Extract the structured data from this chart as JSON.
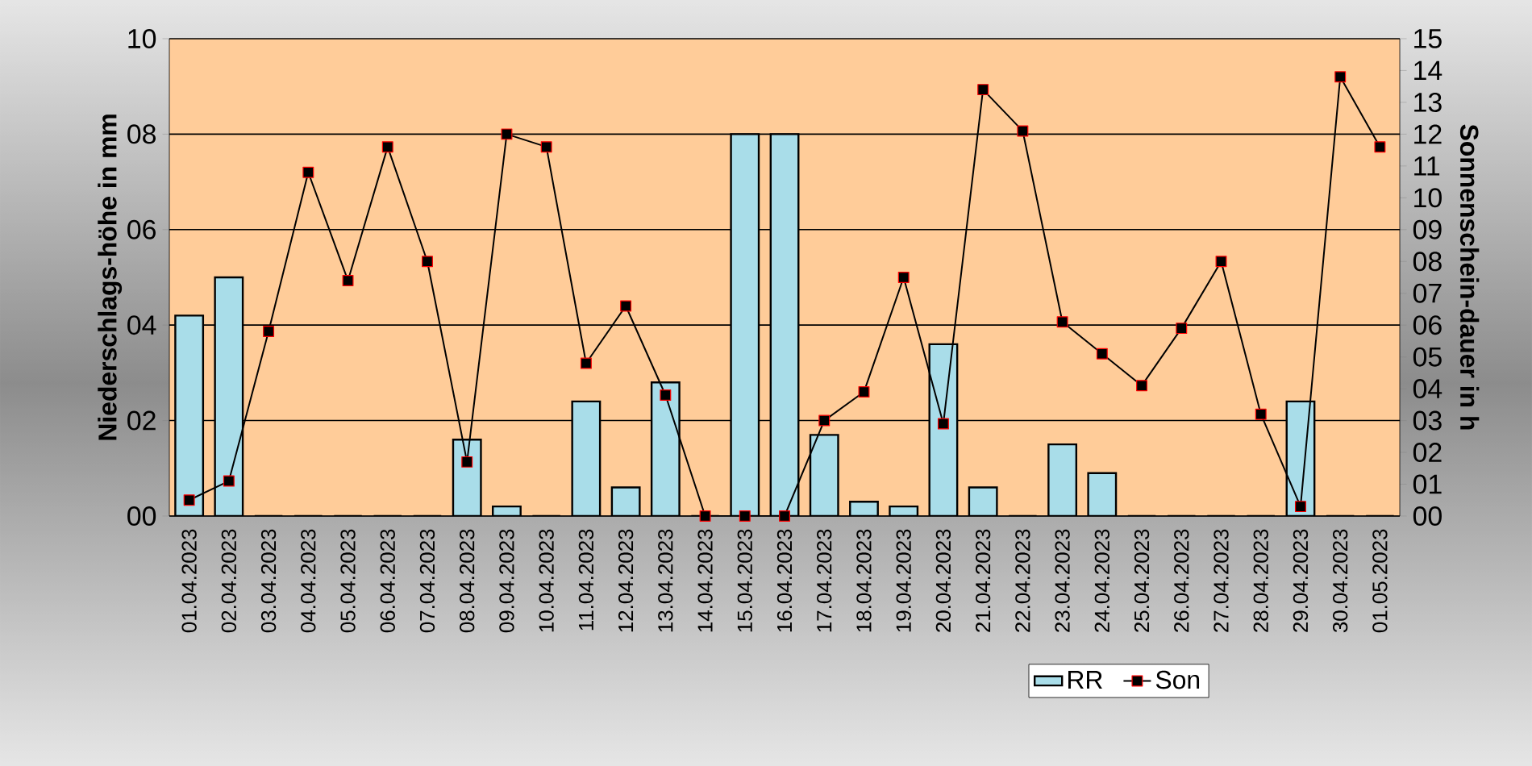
{
  "chart_data": {
    "type": "bar",
    "categories": [
      "01.04.2023",
      "02.04.2023",
      "03.04.2023",
      "04.04.2023",
      "05.04.2023",
      "06.04.2023",
      "07.04.2023",
      "08.04.2023",
      "09.04.2023",
      "10.04.2023",
      "11.04.2023",
      "12.04.2023",
      "13.04.2023",
      "14.04.2023",
      "15.04.2023",
      "16.04.2023",
      "17.04.2023",
      "18.04.2023",
      "19.04.2023",
      "20.04.2023",
      "21.04.2023",
      "22.04.2023",
      "23.04.2023",
      "24.04.2023",
      "25.04.2023",
      "26.04.2023",
      "27.04.2023",
      "28.04.2023",
      "29.04.2023",
      "30.04.2023",
      "01.05.2023"
    ],
    "series": [
      {
        "name": "RR",
        "color": "#a9dde9",
        "values": [
          4.2,
          5.0,
          0,
          0,
          0,
          0,
          0,
          1.6,
          0.2,
          0,
          2.4,
          0.6,
          2.8,
          0,
          8.0,
          8.0,
          1.7,
          0.3,
          0.2,
          3.6,
          0.6,
          0,
          1.5,
          0.9,
          0,
          0,
          0,
          0,
          2.4,
          0,
          0
        ]
      },
      {
        "name": "Son",
        "type": "line",
        "axis": "y2",
        "color": "#000000",
        "values": [
          0.5,
          1.1,
          5.8,
          10.8,
          7.4,
          11.6,
          8.0,
          1.7,
          12.0,
          11.6,
          4.8,
          6.6,
          3.8,
          0,
          0,
          0,
          3.0,
          3.9,
          7.5,
          2.9,
          13.4,
          12.1,
          6.1,
          5.1,
          4.1,
          5.9,
          8.0,
          3.2,
          0.3,
          13.8,
          11.6
        ]
      }
    ],
    "ylabel": "Niederschlags-höhe in mm",
    "y2label": "Sonnenschein-dauer in h",
    "ylim": [
      0,
      10
    ],
    "yticks": [
      {
        "value": 0,
        "label": "00"
      },
      {
        "value": 2,
        "label": "02"
      },
      {
        "value": 4,
        "label": "04"
      },
      {
        "value": 6,
        "label": "06"
      },
      {
        "value": 8,
        "label": "08"
      },
      10
    ],
    "y2lim": [
      0,
      15
    ],
    "y2ticks": [
      {
        "value": 0,
        "label": "00"
      },
      {
        "value": 1,
        "label": "01"
      },
      {
        "value": 2,
        "label": "02"
      },
      {
        "value": 3,
        "label": "03"
      },
      {
        "value": 4,
        "label": "04"
      },
      {
        "value": 5,
        "label": "05"
      },
      {
        "value": 6,
        "label": "06"
      },
      {
        "value": 7,
        "label": "07"
      },
      {
        "value": 8,
        "label": "08"
      },
      {
        "value": 9,
        "label": "09"
      },
      10,
      11,
      12,
      13,
      14,
      15
    ],
    "grid": "y",
    "legend": "bottom",
    "marker": "square"
  }
}
